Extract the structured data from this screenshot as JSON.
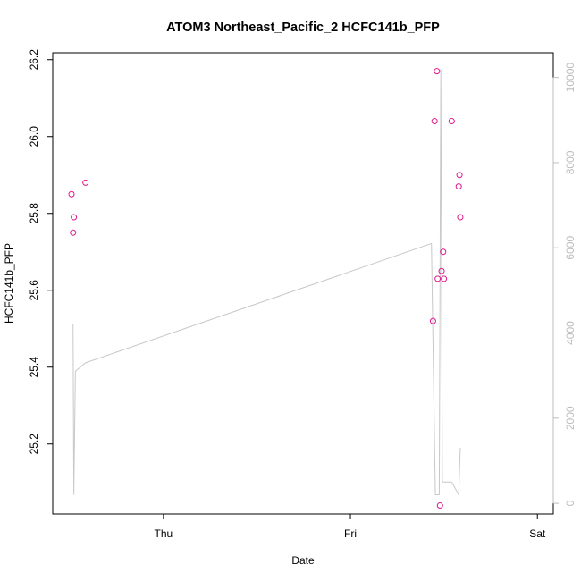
{
  "chart_data": {
    "type": "scatter",
    "title": "ATOM3 Northeast_Pacific_2 HCFC141b_PFP",
    "xlabel": "Date",
    "ylabel": "HCFC141b_PFP",
    "x_axis": {
      "scale": "time",
      "range_hours": [
        -11.8,
        47.4
      ],
      "ticks": [
        {
          "label": "Thu",
          "value": 0
        },
        {
          "label": "Fri",
          "value": 24
        },
        {
          "label": "Sat",
          "value": 48
        }
      ]
    },
    "y_left": {
      "range": [
        25.018,
        26.218
      ],
      "ticks": [
        "25.2",
        "25.4",
        "25.6",
        "25.8",
        "26.0",
        "26.2"
      ],
      "tick_values": [
        25.2,
        25.4,
        25.6,
        25.8,
        26.0,
        26.2
      ]
    },
    "y_right": {
      "range": [
        -250,
        10580
      ],
      "ticks": [
        "0",
        "2000",
        "4000",
        "6000",
        "8000",
        "10000"
      ],
      "tick_values": [
        0,
        2000,
        4000,
        6000,
        8000,
        10000
      ],
      "color": "#bdbdbd"
    },
    "grid": false,
    "points_color": "#e0198c",
    "line_color": "#c8c8c8",
    "series": [
      {
        "type": "scatter",
        "axis": "left",
        "points": [
          {
            "x": -11.8,
            "y": 25.85
          },
          {
            "x": -11.6,
            "y": 25.75
          },
          {
            "x": -11.5,
            "y": 25.79
          },
          {
            "x": -10.0,
            "y": 25.88
          },
          {
            "x": 34.6,
            "y": 25.52
          },
          {
            "x": 34.8,
            "y": 26.04
          },
          {
            "x": 35.1,
            "y": 26.17
          },
          {
            "x": 35.2,
            "y": 25.63
          },
          {
            "x": 35.5,
            "y": 25.04
          },
          {
            "x": 35.7,
            "y": 25.65
          },
          {
            "x": 35.9,
            "y": 25.7
          },
          {
            "x": 36.0,
            "y": 25.63
          },
          {
            "x": 37.0,
            "y": 26.04
          },
          {
            "x": 37.9,
            "y": 25.87
          },
          {
            "x": 38.0,
            "y": 25.9
          },
          {
            "x": 38.1,
            "y": 25.79
          }
        ]
      },
      {
        "type": "line",
        "axis": "right",
        "points": [
          {
            "x": -11.6,
            "y": 4200
          },
          {
            "x": -11.5,
            "y": 200
          },
          {
            "x": -11.3,
            "y": 3100
          },
          {
            "x": -10.0,
            "y": 3300
          },
          {
            "x": 34.4,
            "y": 6100
          },
          {
            "x": 34.9,
            "y": 200
          },
          {
            "x": 35.4,
            "y": 200
          },
          {
            "x": 35.6,
            "y": 10200
          },
          {
            "x": 35.8,
            "y": 500
          },
          {
            "x": 36.0,
            "y": 500
          },
          {
            "x": 36.1,
            "y": 500
          },
          {
            "x": 37.0,
            "y": 500
          },
          {
            "x": 37.9,
            "y": 200
          },
          {
            "x": 38.1,
            "y": 1300
          }
        ]
      }
    ]
  }
}
